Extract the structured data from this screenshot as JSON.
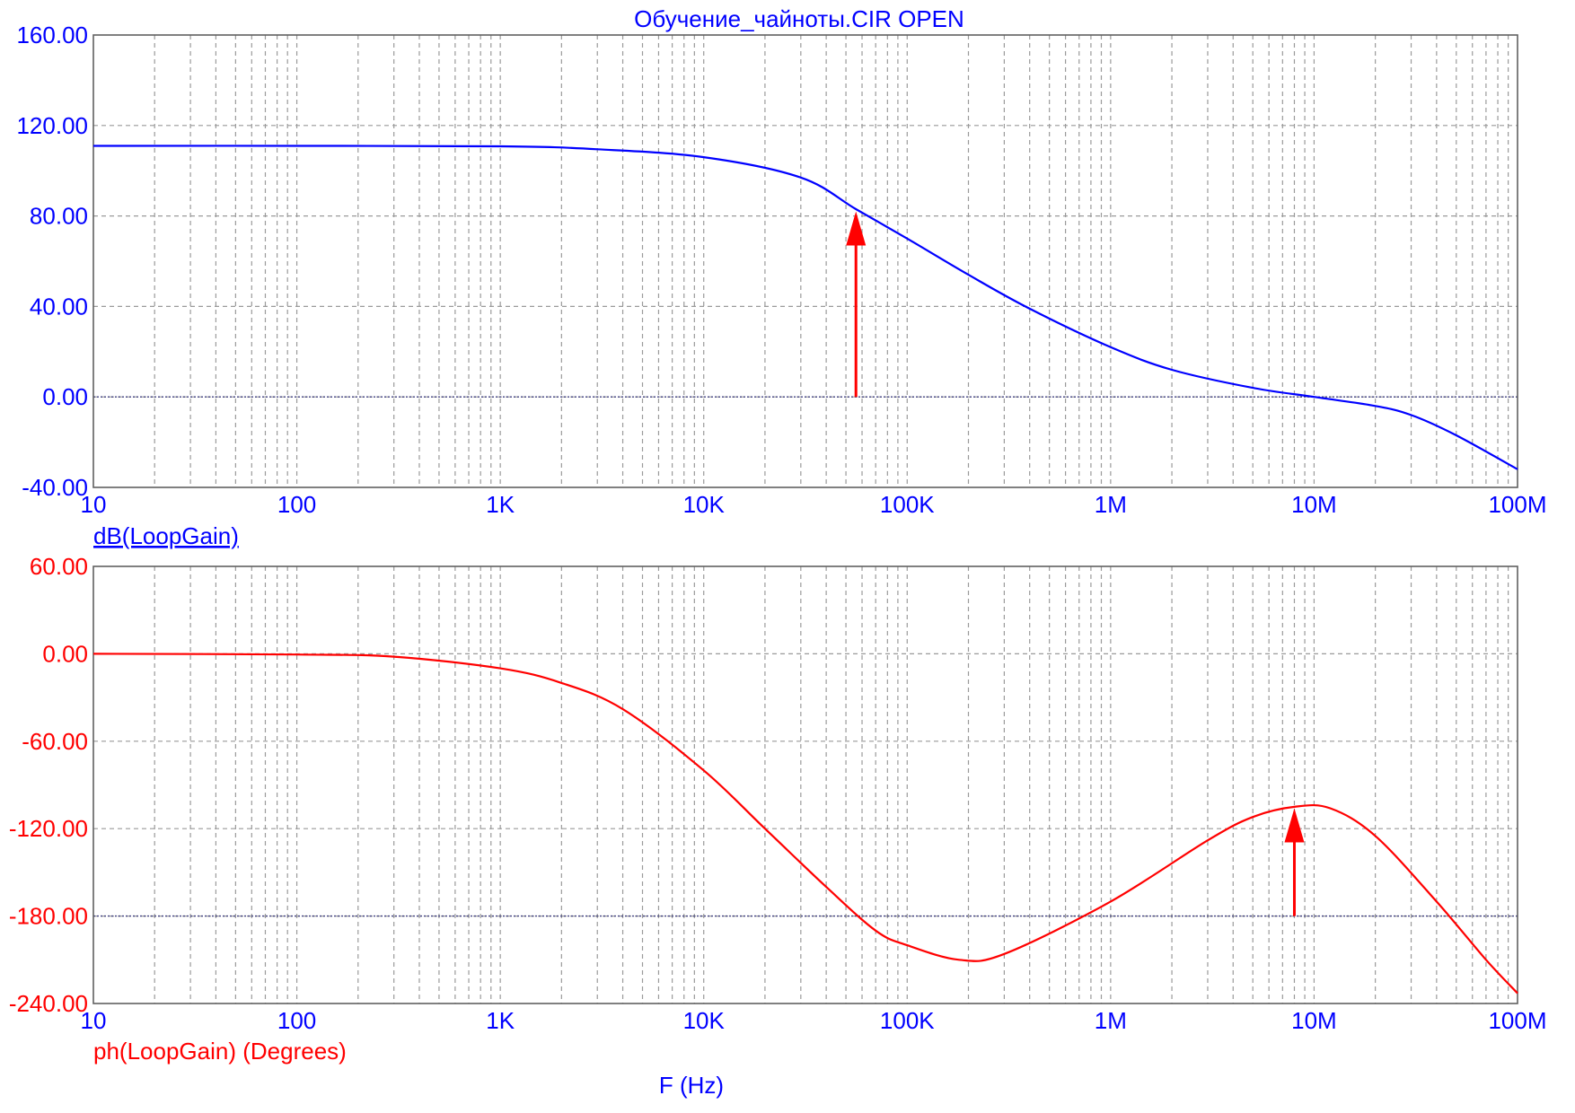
{
  "title": "Обучение_чайноты.CIR OPEN",
  "xlabel": "F (Hz)",
  "colors": {
    "magnitude": "#0000ff",
    "phase": "#ff0000",
    "marker": "#ff0000",
    "grid": "#9a9a9a"
  },
  "chart_data": [
    {
      "type": "line",
      "name": "dB(LoopGain)",
      "label": "dB(LoopGain)",
      "label_underlined": true,
      "color": "#0000ff",
      "xscale": "log",
      "xlim": [
        10,
        100000000
      ],
      "ylim": [
        -40,
        160
      ],
      "yticks": [
        160,
        120,
        80,
        40,
        0,
        -40
      ],
      "ytick_labels": [
        "160.00",
        "120.00",
        "80.00",
        "40.00",
        "0.00",
        "-40.00"
      ],
      "xticks": [
        10,
        100,
        1000,
        10000,
        100000,
        1000000,
        10000000,
        100000000
      ],
      "xtick_labels": [
        "10",
        "100",
        "1K",
        "10K",
        "100K",
        "1M",
        "10M",
        "100M"
      ],
      "grid": true,
      "reference_line_y": 0,
      "series": [
        {
          "name": "dB(LoopGain)",
          "x": [
            10,
            100,
            1000,
            3000,
            10000,
            30000,
            56000,
            100000,
            200000,
            400000,
            1000000,
            2000000,
            5000000,
            10000000,
            20000000,
            30000000,
            50000000,
            100000000
          ],
          "y": [
            111,
            111,
            110.8,
            109.5,
            106,
            97,
            83,
            70,
            54,
            39,
            22,
            12,
            4,
            0,
            -4,
            -8,
            -17,
            -32
          ]
        }
      ],
      "annotations": [
        {
          "type": "arrow",
          "x": 56000,
          "y_from": 0,
          "y_to": 82,
          "color": "#ff0000"
        }
      ]
    },
    {
      "type": "line",
      "name": "ph(LoopGain) (Degrees)",
      "label": "ph(LoopGain) (Degrees)",
      "color": "#ff0000",
      "xscale": "log",
      "xlim": [
        10,
        100000000
      ],
      "ylim": [
        -240,
        60
      ],
      "yticks": [
        60,
        0,
        -60,
        -120,
        -180,
        -240
      ],
      "ytick_labels": [
        "60.00",
        "0.00",
        "-60.00",
        "-120.00",
        "-180.00",
        "-240.00"
      ],
      "xticks": [
        10,
        100,
        1000,
        10000,
        100000,
        1000000,
        10000000,
        100000000
      ],
      "xtick_labels": [
        "10",
        "100",
        "1K",
        "10K",
        "100K",
        "1M",
        "10M",
        "100M"
      ],
      "grid": true,
      "reference_line_y": -180,
      "series": [
        {
          "name": "ph(LoopGain) (Degrees)",
          "x": [
            10,
            100,
            300,
            1000,
            2000,
            4000,
            10000,
            20000,
            40000,
            70000,
            100000,
            180000,
            300000,
            1000000,
            3000000,
            5000000,
            8000000,
            12000000,
            20000000,
            40000000,
            70000000,
            100000000
          ],
          "y": [
            0,
            -0.5,
            -2,
            -10,
            -20,
            -38,
            -80,
            -120,
            -160,
            -190,
            -200,
            -210,
            -206,
            -170,
            -128,
            -112,
            -105,
            -106,
            -125,
            -170,
            -210,
            -233
          ]
        }
      ],
      "annotations": [
        {
          "type": "arrow",
          "x": 8000000,
          "y_from": -180,
          "y_to": -106,
          "color": "#ff0000"
        }
      ]
    }
  ]
}
